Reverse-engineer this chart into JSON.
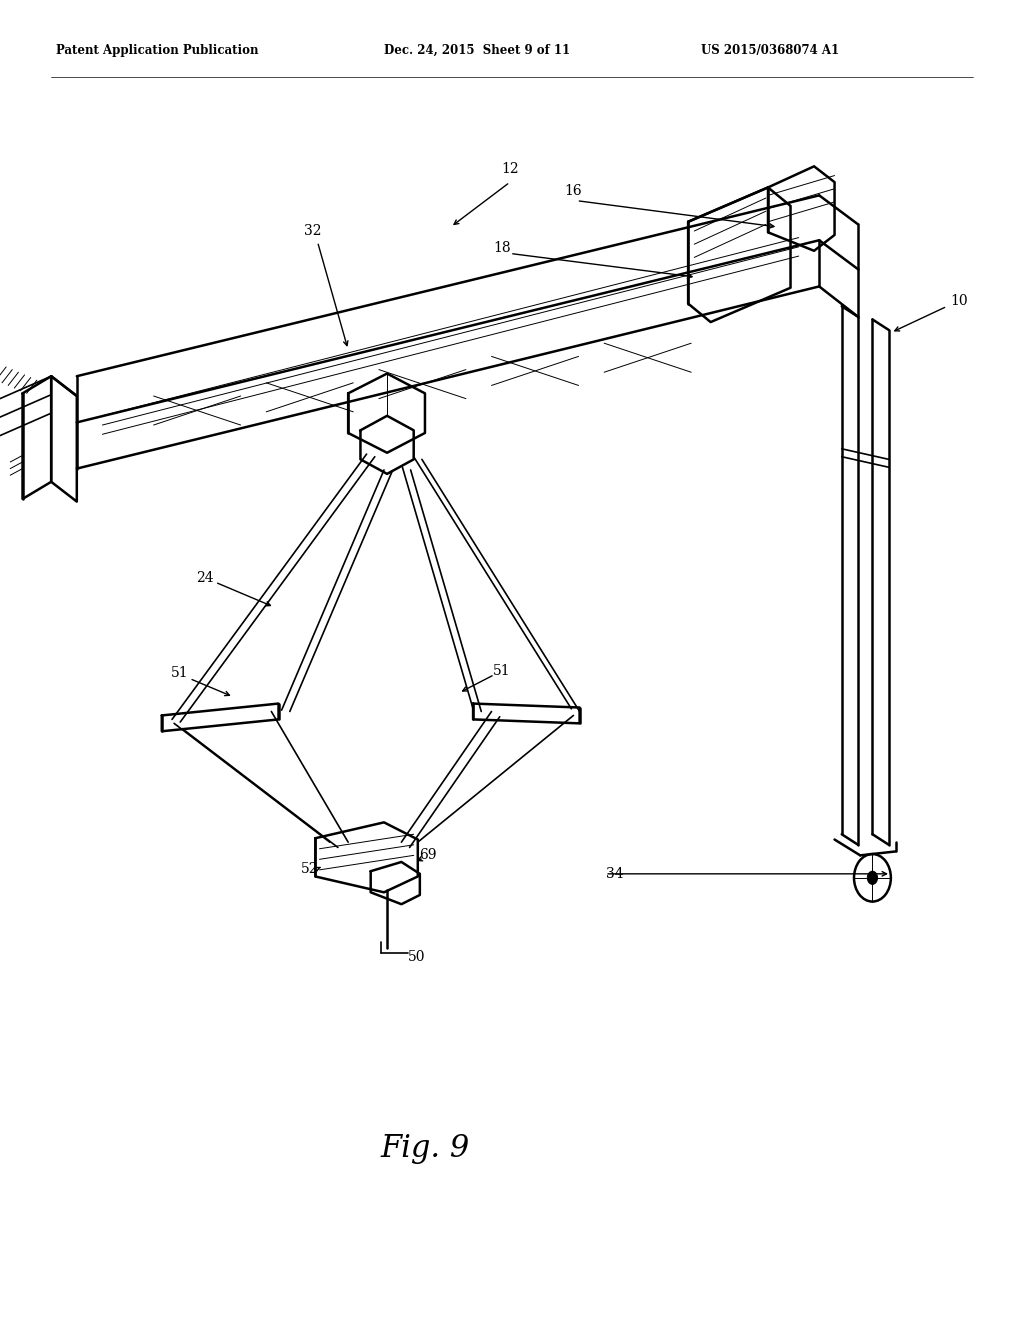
{
  "bg_color": "#ffffff",
  "header_left": "Patent Application Publication",
  "header_mid": "Dec. 24, 2015  Sheet 9 of 11",
  "header_right": "US 2015/0368074 A1",
  "figure_label": "Fig. 9",
  "lw_main": 1.8,
  "lw_med": 1.2,
  "lw_thin": 0.7,
  "label_fontsize": 10,
  "header_fontsize": 8.5,
  "fig_label_fontsize": 22
}
